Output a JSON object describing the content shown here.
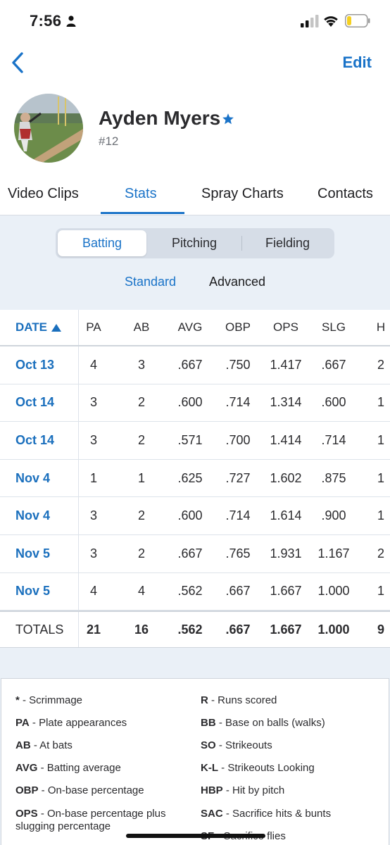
{
  "status_bar": {
    "time": "7:56"
  },
  "nav": {
    "edit_label": "Edit"
  },
  "player": {
    "name": "Ayden Myers",
    "number": "#12"
  },
  "tabs": [
    {
      "label": "Video Clips"
    },
    {
      "label": "Stats"
    },
    {
      "label": "Spray Charts"
    },
    {
      "label": "Contacts"
    }
  ],
  "segments": [
    {
      "label": "Batting"
    },
    {
      "label": "Pitching"
    },
    {
      "label": "Fielding"
    }
  ],
  "subtabs": [
    {
      "label": "Standard"
    },
    {
      "label": "Advanced"
    }
  ],
  "table": {
    "headers": [
      "DATE",
      "PA",
      "AB",
      "AVG",
      "OBP",
      "OPS",
      "SLG",
      "H"
    ],
    "rows": [
      [
        "Oct 13",
        "4",
        "3",
        ".667",
        ".750",
        "1.417",
        ".667",
        "2"
      ],
      [
        "Oct 14",
        "3",
        "2",
        ".600",
        ".714",
        "1.314",
        ".600",
        "1"
      ],
      [
        "Oct 14",
        "3",
        "2",
        ".571",
        ".700",
        "1.414",
        ".714",
        "1"
      ],
      [
        "Nov 4",
        "1",
        "1",
        ".625",
        ".727",
        "1.602",
        ".875",
        "1"
      ],
      [
        "Nov 4",
        "3",
        "2",
        ".600",
        ".714",
        "1.614",
        ".900",
        "1"
      ],
      [
        "Nov 5",
        "3",
        "2",
        ".667",
        ".765",
        "1.931",
        "1.167",
        "2"
      ],
      [
        "Nov 5",
        "4",
        "4",
        ".562",
        ".667",
        "1.667",
        "1.000",
        "1"
      ]
    ],
    "totals": [
      "TOTALS",
      "21",
      "16",
      ".562",
      ".667",
      "1.667",
      "1.000",
      "9"
    ]
  },
  "legend": {
    "left": [
      {
        "abbr": "*",
        "desc": " - Scrimmage"
      },
      {
        "abbr": "PA",
        "desc": " - Plate appearances"
      },
      {
        "abbr": "AB",
        "desc": " - At bats"
      },
      {
        "abbr": "AVG",
        "desc": " - Batting average"
      },
      {
        "abbr": "OBP",
        "desc": " - On-base percentage"
      },
      {
        "abbr": "OPS",
        "desc": " - On-base percentage plus slugging percentage"
      }
    ],
    "right": [
      {
        "abbr": "R",
        "desc": " - Runs scored"
      },
      {
        "abbr": "BB",
        "desc": " - Base on balls (walks)"
      },
      {
        "abbr": "SO",
        "desc": " - Strikeouts"
      },
      {
        "abbr": "K-L",
        "desc": " - Strikeouts Looking"
      },
      {
        "abbr": "HBP",
        "desc": " - Hit by pitch"
      },
      {
        "abbr": "SAC",
        "desc": " - Sacrifice hits & bunts"
      },
      {
        "abbr": "SF",
        "desc": " - Sacrifice flies"
      }
    ]
  },
  "colors": {
    "accent": "#1a73c8",
    "panel": "#eaf0f7",
    "battery": "#f5d020"
  }
}
